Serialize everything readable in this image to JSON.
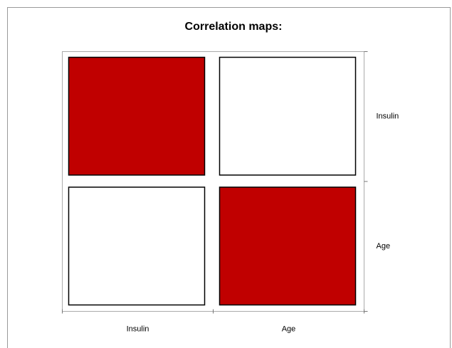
{
  "chart_data": {
    "type": "heatmap",
    "title": "Correlation maps:",
    "x_categories": [
      "Insulin",
      "Age"
    ],
    "y_categories": [
      "Insulin",
      "Age"
    ],
    "values": [
      [
        1,
        0
      ],
      [
        0,
        1
      ]
    ],
    "color_scale": [
      "#ffffff",
      "#c00000"
    ]
  }
}
